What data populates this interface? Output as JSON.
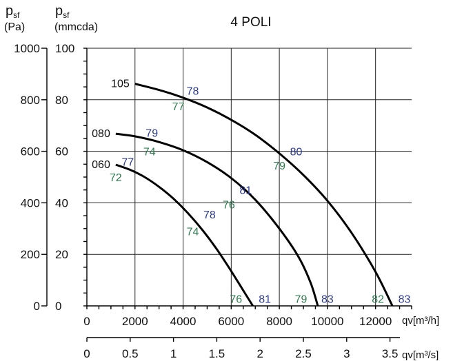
{
  "chart_data": {
    "type": "line",
    "title": "4 POLI",
    "colors": {
      "curve": "#000000",
      "blue_label": "#2b3990",
      "green_label": "#2e7d4f",
      "grid": "#222222"
    },
    "y_axis_left": {
      "symbol": "p",
      "subscript": "sf",
      "unit": "(Pa)",
      "ticks": [
        "0",
        "200",
        "400",
        "600",
        "800",
        "1000"
      ],
      "ylim": [
        0,
        1000
      ]
    },
    "y_axis_right": {
      "symbol": "p",
      "subscript": "sf",
      "unit": "(mmcda)",
      "ticks": [
        "0",
        "20",
        "40",
        "60",
        "80",
        "100"
      ],
      "ylim": [
        0,
        100
      ]
    },
    "x_axis_m3h": {
      "label_symbol": "qv",
      "label_unit": "[m³/h]",
      "ticks": [
        "0",
        "2000",
        "4000",
        "6000",
        "8000",
        "10000",
        "12000"
      ],
      "xlim": [
        0,
        13500
      ]
    },
    "x_axis_m3s": {
      "label_symbol": "qv",
      "label_unit": "[m³/s]",
      "ticks": [
        "0",
        "0.5",
        "1",
        "1.5",
        "2",
        "2.5",
        "3",
        "3.5"
      ]
    },
    "series": [
      {
        "name": "060",
        "x": [
          1200,
          1800,
          2400,
          3000,
          3600,
          4200,
          4800,
          5400,
          6000,
          6500,
          6900
        ],
        "y": [
          548,
          528,
          500,
          462,
          416,
          360,
          295,
          220,
          135,
          60,
          0
        ]
      },
      {
        "name": "080",
        "x": [
          1200,
          2000,
          3000,
          4000,
          5000,
          6000,
          7000,
          8000,
          8800,
          9300,
          9600
        ],
        "y": [
          668,
          658,
          636,
          604,
          558,
          496,
          412,
          300,
          190,
          90,
          0
        ]
      },
      {
        "name": "105",
        "x": [
          2000,
          3000,
          4000,
          5000,
          6000,
          7000,
          8000,
          9000,
          10000,
          11000,
          12000,
          12700
        ],
        "y": [
          862,
          838,
          808,
          770,
          722,
          664,
          592,
          508,
          408,
          284,
          132,
          0
        ]
      }
    ],
    "point_labels": [
      {
        "text": "78",
        "color": "blue",
        "x": 4400,
        "y": 835
      },
      {
        "text": "77",
        "color": "green",
        "x": 3800,
        "y": 775
      },
      {
        "text": "79",
        "color": "blue",
        "x": 2700,
        "y": 672
      },
      {
        "text": "74",
        "color": "green",
        "x": 2600,
        "y": 600
      },
      {
        "text": "77",
        "color": "blue",
        "x": 1700,
        "y": 560
      },
      {
        "text": "72",
        "color": "green",
        "x": 1200,
        "y": 500
      },
      {
        "text": "80",
        "color": "blue",
        "x": 8700,
        "y": 600
      },
      {
        "text": "79",
        "color": "green",
        "x": 8000,
        "y": 545
      },
      {
        "text": "81",
        "color": "blue",
        "x": 6600,
        "y": 450
      },
      {
        "text": "76",
        "color": "green",
        "x": 5900,
        "y": 395
      },
      {
        "text": "78",
        "color": "blue",
        "x": 5100,
        "y": 355
      },
      {
        "text": "74",
        "color": "green",
        "x": 4400,
        "y": 290
      },
      {
        "text": "76",
        "color": "green",
        "x": 6200,
        "y": 28
      },
      {
        "text": "81",
        "color": "blue",
        "x": 7400,
        "y": 28
      },
      {
        "text": "79",
        "color": "green",
        "x": 8900,
        "y": 28
      },
      {
        "text": "83",
        "color": "blue",
        "x": 10000,
        "y": 28
      },
      {
        "text": "82",
        "color": "green",
        "x": 12100,
        "y": 28
      },
      {
        "text": "83",
        "color": "blue",
        "x": 13200,
        "y": 28
      }
    ]
  }
}
